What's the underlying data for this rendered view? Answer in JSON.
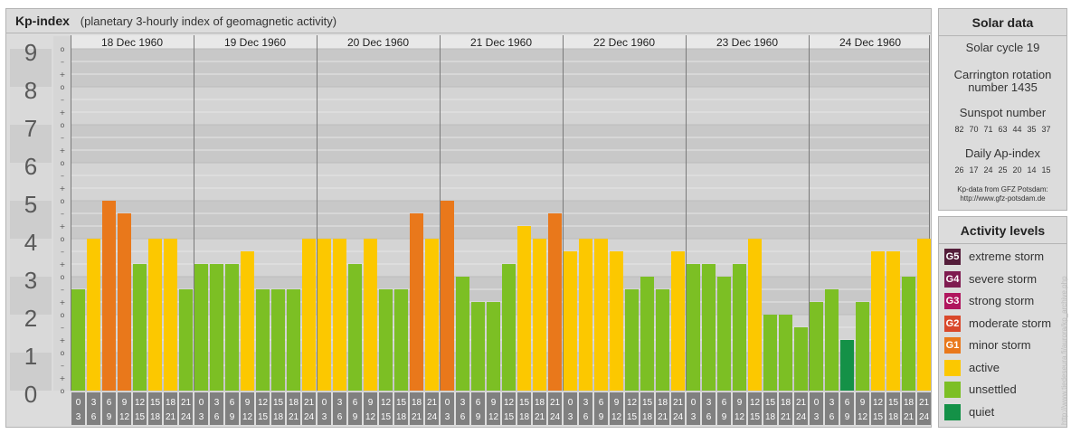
{
  "header": {
    "title": "Kp-index",
    "subtitle": "(planetary 3-hourly index of geomagnetic activity)"
  },
  "chart_data": {
    "type": "bar",
    "ylim": [
      0,
      9
    ],
    "y_ticks": [
      "0",
      "1",
      "2",
      "3",
      "4",
      "5",
      "6",
      "7",
      "8",
      "9"
    ],
    "minor_labels": [
      "o",
      "+",
      "–",
      "o",
      "+",
      "–",
      "o",
      "+",
      "–",
      "o",
      "+",
      "–",
      "o",
      "+",
      "–",
      "o",
      "+",
      "–",
      "o",
      "+",
      "–",
      "o",
      "+",
      "–",
      "o",
      "+",
      "–",
      "o"
    ],
    "days": [
      "18 Dec 1960",
      "19 Dec 1960",
      "20 Dec 1960",
      "21 Dec 1960",
      "22 Dec 1960",
      "23 Dec 1960",
      "24 Dec 1960"
    ],
    "interval_start": [
      "0",
      "3",
      "6",
      "9",
      "12",
      "15",
      "18",
      "21"
    ],
    "interval_end": [
      "3",
      "6",
      "9",
      "12",
      "15",
      "18",
      "21",
      "24"
    ],
    "values": [
      [
        2.667,
        4.0,
        5.0,
        4.667,
        3.333,
        4.0,
        4.0,
        2.667
      ],
      [
        3.333,
        3.333,
        3.333,
        3.667,
        2.667,
        2.667,
        2.667,
        4.0
      ],
      [
        4.0,
        4.0,
        3.333,
        4.0,
        2.667,
        2.667,
        4.667,
        4.0
      ],
      [
        5.0,
        3.0,
        2.333,
        2.333,
        3.333,
        4.333,
        4.0,
        4.667
      ],
      [
        3.667,
        4.0,
        4.0,
        3.667,
        2.667,
        3.0,
        2.667,
        3.667
      ],
      [
        3.333,
        3.333,
        3.0,
        3.333,
        4.0,
        2.0,
        2.0,
        1.667
      ],
      [
        2.333,
        2.667,
        1.333,
        2.333,
        3.667,
        3.667,
        3.0,
        4.0
      ]
    ],
    "colors": {
      "quiet": "#149147",
      "unsettled": "#7cbf24",
      "active": "#fcc800",
      "minor_storm": "#e9781b",
      "moderate_storm": "#d9482b",
      "strong_storm": "#b0165e",
      "severe_storm": "#7f1b50",
      "extreme_storm": "#541d3a"
    }
  },
  "solar": {
    "title": "Solar data",
    "cycle": "Solar cycle 19",
    "carrington": "Carrington rotation",
    "carrington_number": "number 1435",
    "sunspot_title": "Sunspot number",
    "sunspot_values": [
      "82",
      "70",
      "71",
      "63",
      "44",
      "35",
      "37"
    ],
    "ap_title": "Daily Ap-index",
    "ap_values": [
      "26",
      "17",
      "24",
      "25",
      "20",
      "14",
      "15"
    ],
    "source_line1": "Kp-data from GFZ Potsdam:",
    "source_line2": "http://www.gfz-potsdam.de"
  },
  "activity": {
    "title": "Activity levels",
    "levels": [
      {
        "code": "G5",
        "label": "extreme storm",
        "color": "#541d3a"
      },
      {
        "code": "G4",
        "label": "severe storm",
        "color": "#7f1b50"
      },
      {
        "code": "G3",
        "label": "strong storm",
        "color": "#b0165e"
      },
      {
        "code": "G2",
        "label": "moderate storm",
        "color": "#d9482b"
      },
      {
        "code": "G1",
        "label": "minor storm",
        "color": "#e9781b"
      },
      {
        "code": "",
        "label": "active",
        "color": "#fcc800"
      },
      {
        "code": "",
        "label": "unsettled",
        "color": "#7cbf24"
      },
      {
        "code": "",
        "label": "quiet",
        "color": "#149147"
      }
    ]
  },
  "credit": "http://www.tiedeseura.fi/aurora/kp_archive.php"
}
